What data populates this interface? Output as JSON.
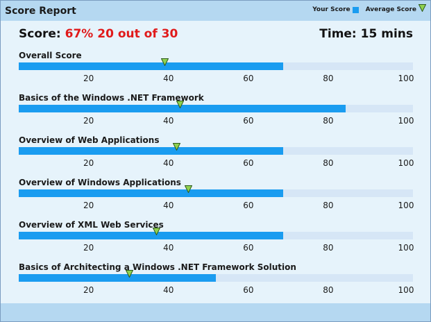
{
  "header": {
    "title": "Score Report"
  },
  "legend": {
    "your_score": "Your Score",
    "average_score": "Average Score"
  },
  "colors": {
    "your_score": "#1a9cf0",
    "average_marker": "#8fd14f",
    "track": "#d6e6f6",
    "highlight": "#e01a1a"
  },
  "summary": {
    "score_label": "Score:",
    "score_value": "67% 20 out of 30",
    "time_label": "Time:",
    "time_value": "15 mins"
  },
  "axis_ticks": [
    "20",
    "40",
    "60",
    "80",
    "100"
  ],
  "sections": [
    {
      "label": "Overall Score",
      "your_score": 67,
      "average_score": 37
    },
    {
      "label": "Basics of the Windows .NET Framework",
      "your_score": 83,
      "average_score": 41
    },
    {
      "label": "Overview of Web Applications",
      "your_score": 67,
      "average_score": 40
    },
    {
      "label": "Overview of Windows Applications",
      "your_score": 67,
      "average_score": 43
    },
    {
      "label": "Overview of XML Web Services",
      "your_score": 67,
      "average_score": 35
    },
    {
      "label": "Basics of Architecting a Windows .NET Framework Solution",
      "your_score": 50,
      "average_score": 28
    }
  ]
}
